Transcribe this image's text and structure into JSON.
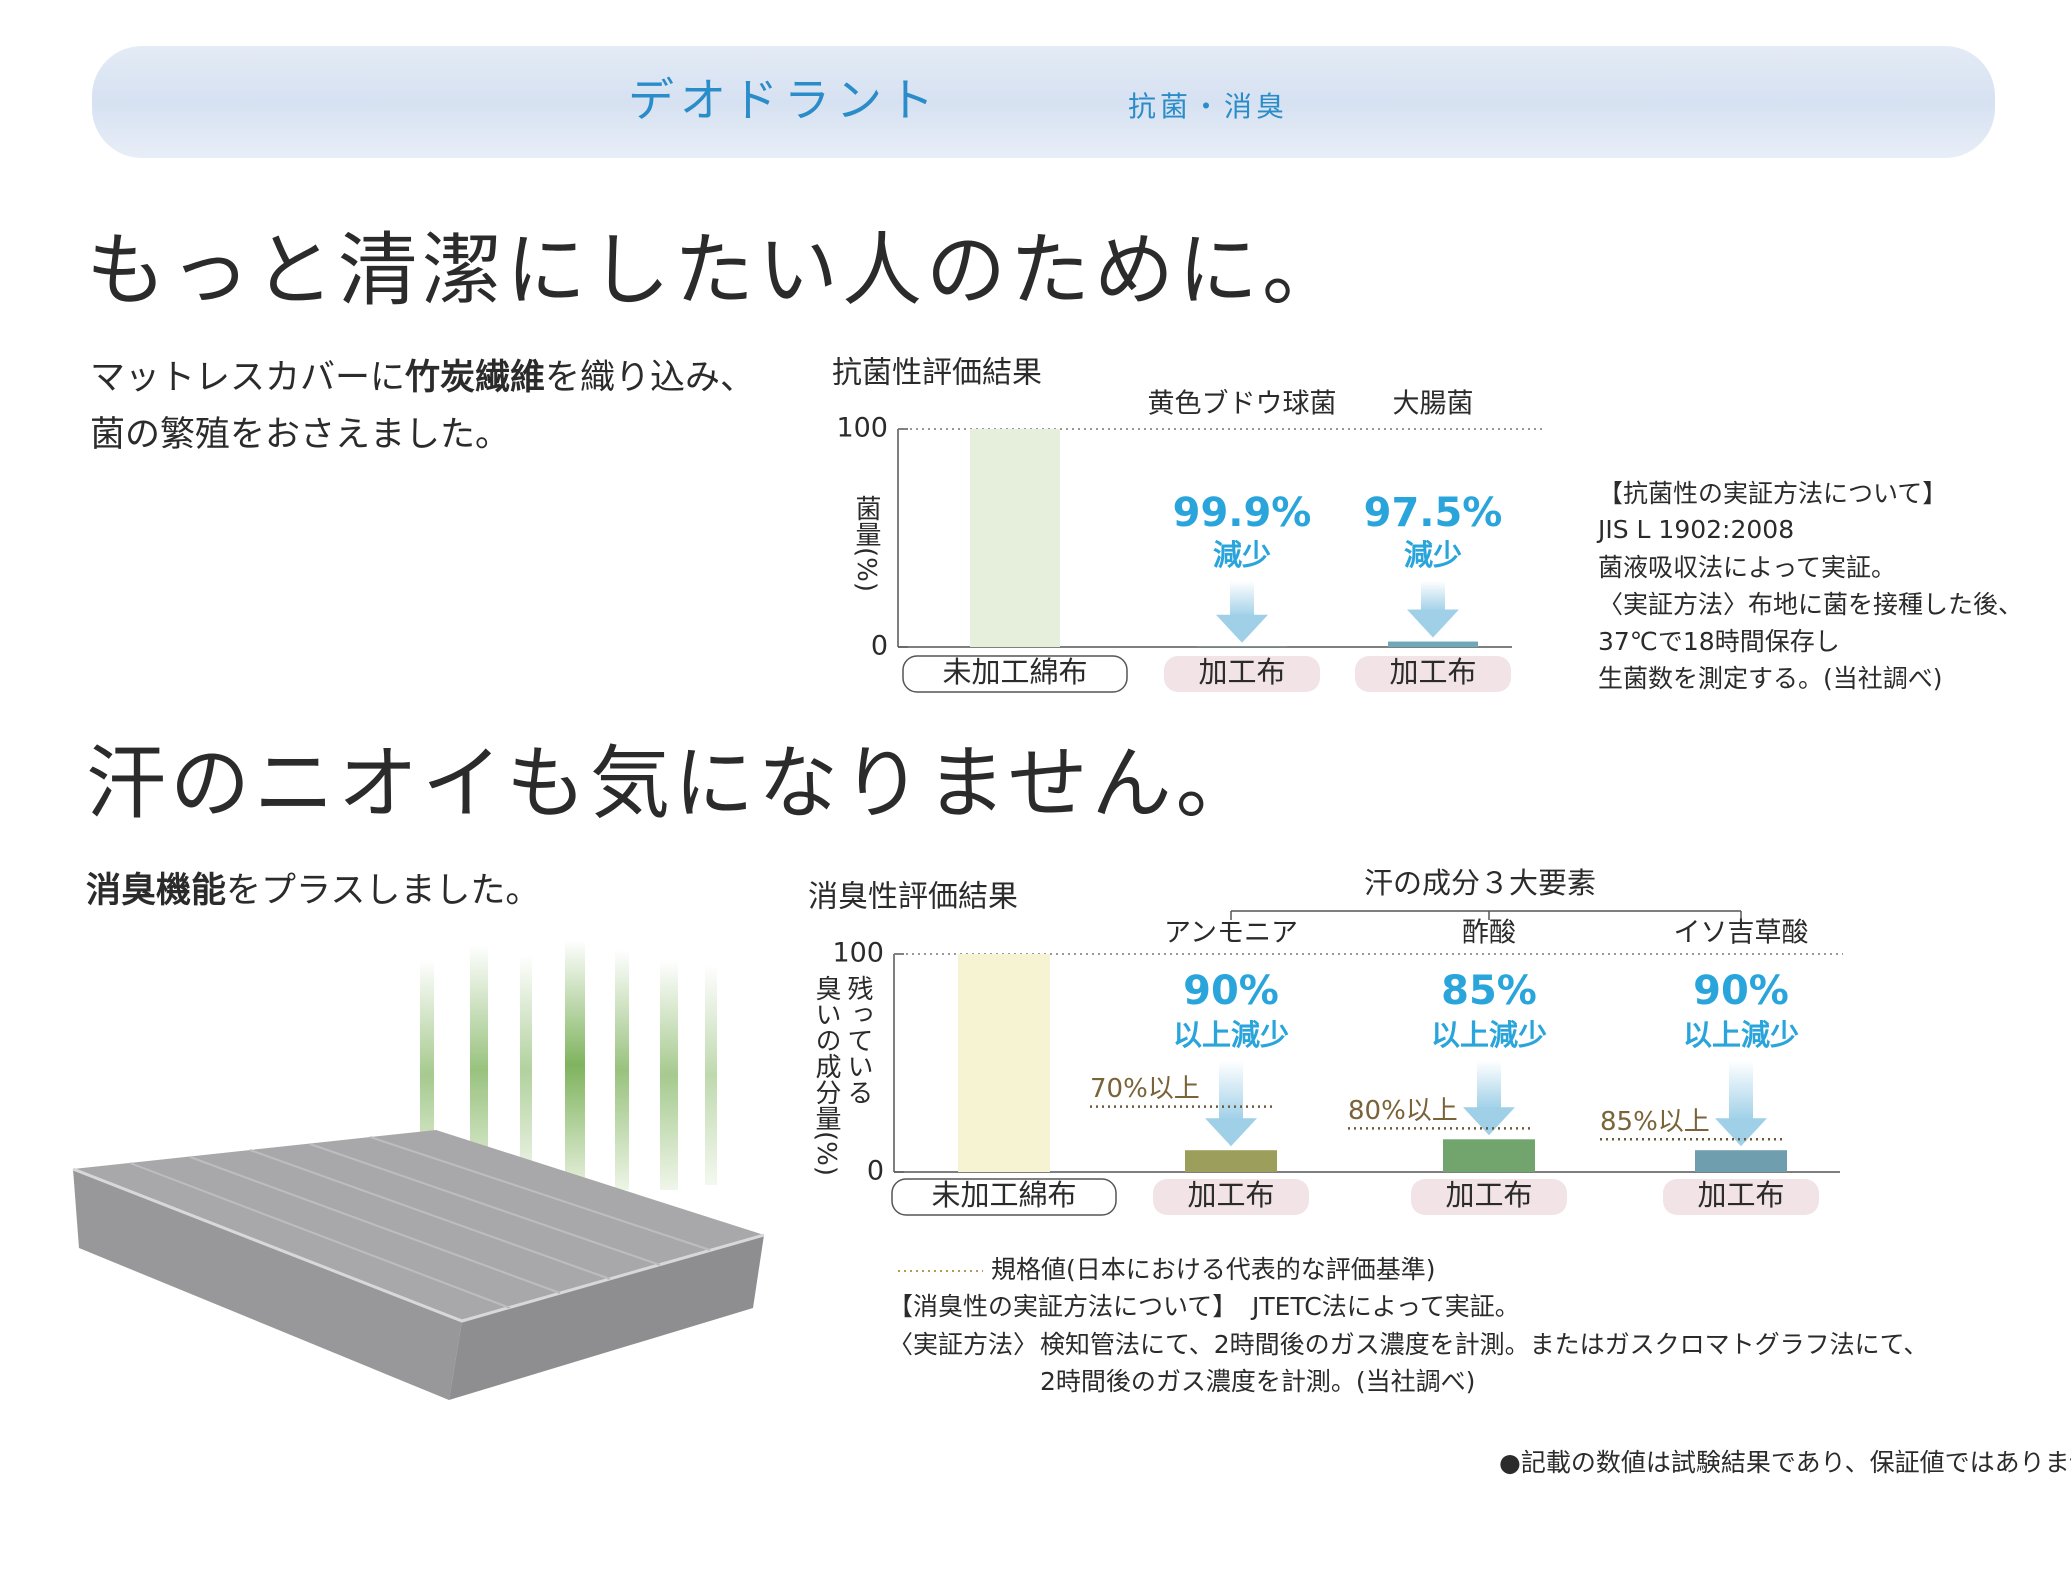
{
  "header": {
    "title": "デオドラント",
    "subtitle": "抗菌・消臭"
  },
  "sections": [
    {
      "heading": "もっと清潔にしたい人のために。",
      "body": [
        [
          "マットレスカバーに",
          "竹炭繊維",
          "を織り込み、"
        ],
        [
          "菌の繁殖をおさえました。"
        ]
      ]
    },
    {
      "heading": "汗のニオイも気になりません。",
      "body": [
        [
          "",
          "消臭機能",
          "をプラスしました。"
        ]
      ]
    }
  ],
  "antibacterial_note": [
    "【抗菌性の実証方法について】",
    "JIS L 1902:2008",
    "菌液吸収法によって実証。",
    "〈実証方法〉布地に菌を接種した後、",
    "37℃で18時間保存し",
    "生菌数を測定する。(当社調べ)"
  ],
  "deodorant_note": {
    "heading": "【消臭性の実証方法について】",
    "method": "JTETC法によって実証。",
    "label": "〈実証方法〉",
    "lines": [
      "検知管法にて、2時間後のガス濃度を計測。またはガスクロマトグラフ法にて、",
      "2時間後のガス濃度を計測。(当社調べ)"
    ]
  },
  "footnote": "●記載の数値は試験結果であり、保証値ではありません",
  "chart_data": [
    {
      "type": "bar",
      "title": "抗菌性評価結果",
      "y_label": [
        "菌量(%)"
      ],
      "categories": [
        "未加工綿布",
        "加工布",
        "加工布"
      ],
      "groups": [
        null,
        "黄色ブドウ球菌",
        "大腸菌"
      ],
      "values": [
        100,
        0.1,
        2.5
      ],
      "colors": [
        "#e6efdc",
        "#6fa8b8",
        "#6fa8b8"
      ],
      "annotations": [
        null,
        {
          "rate": "99.9%",
          "text": "減少"
        },
        {
          "rate": "97.5%",
          "text": "減少"
        }
      ],
      "ylim": [
        0,
        100
      ],
      "yticks": [
        0,
        100
      ]
    },
    {
      "type": "bar",
      "title": "消臭性評価結果",
      "y_label": [
        "残っている",
        "臭いの成分量(%)"
      ],
      "group_title": "汗の成分３大要素",
      "categories": [
        "未加工綿布",
        "加工布",
        "加工布",
        "加工布"
      ],
      "groups": [
        null,
        "アンモニア",
        "酢酸",
        "イソ吉草酸"
      ],
      "values": [
        100,
        10,
        15,
        10
      ],
      "colors": [
        "#f6f3d2",
        "#9c9f5c",
        "#72a56e",
        "#6f9fae"
      ],
      "annotations": [
        null,
        {
          "rate": "90%",
          "text": "以上減少"
        },
        {
          "rate": "85%",
          "text": "以上減少"
        },
        {
          "rate": "90%",
          "text": "以上減少"
        }
      ],
      "standards": [
        null,
        {
          "value": 30,
          "label": "70%以上"
        },
        {
          "value": 20,
          "label": "80%以上"
        },
        {
          "value": 15,
          "label": "85%以上"
        }
      ],
      "standard_legend": "規格値(日本における代表的な評価基準)",
      "ylim": [
        0,
        100
      ],
      "yticks": [
        0,
        100
      ]
    }
  ]
}
